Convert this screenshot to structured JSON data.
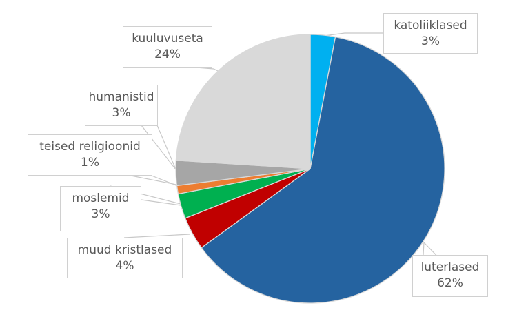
{
  "chart_data": {
    "type": "pie",
    "title": "",
    "start_angle_deg": 0,
    "direction": "clockwise",
    "slices": [
      {
        "label": "katoliiklased",
        "value": 3,
        "display": "3%",
        "color": "#00b0f0"
      },
      {
        "label": "luterlased",
        "value": 62,
        "display": "62%",
        "color": "#2563a0"
      },
      {
        "label": "muud kristlased",
        "value": 4,
        "display": "4%",
        "color": "#c00000"
      },
      {
        "label": "moslemid",
        "value": 3,
        "display": "3%",
        "color": "#00b050"
      },
      {
        "label": "teised religioonid",
        "value": 1,
        "display": "1%",
        "color": "#ed7d31"
      },
      {
        "label": "humanistid",
        "value": 3,
        "display": "3%",
        "color": "#a6a6a6"
      },
      {
        "label": "kuuluvuseta",
        "value": 24,
        "display": "24%",
        "color": "#d9d9d9"
      }
    ],
    "legend": "none",
    "data_labels": "callout boxes with category name and percentage"
  },
  "labels": {
    "katoliiklased": {
      "name": "katoliiklased",
      "pct": "3%"
    },
    "luterlased": {
      "name": "luterlased",
      "pct": "62%"
    },
    "muud_kristlased": {
      "name": "muud kristlased",
      "pct": "4%"
    },
    "moslemid": {
      "name": "moslemid",
      "pct": "3%"
    },
    "teised_religioonid": {
      "name": "teised religioonid",
      "pct": "1%"
    },
    "humanistid": {
      "name": "humanistid",
      "pct": "3%"
    },
    "kuuluvuseta": {
      "name": "kuuluvuseta",
      "pct": "24%"
    }
  }
}
